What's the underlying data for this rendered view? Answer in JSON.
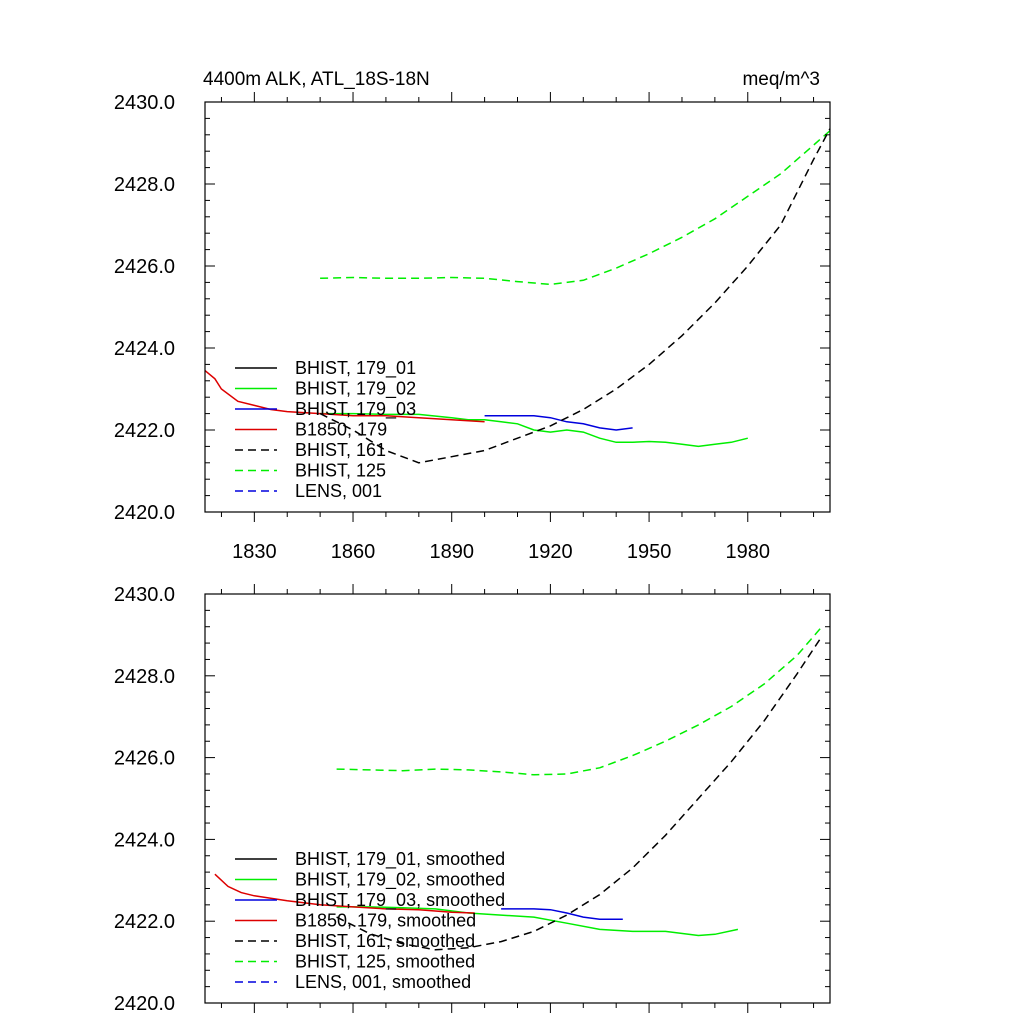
{
  "chart_data": [
    {
      "type": "line",
      "title_left": "4400m ALK, ATL_18S-18N",
      "title_right": "meq/m^3",
      "xlim": [
        1815,
        2005
      ],
      "ylim": [
        2420,
        2430
      ],
      "xticks": [
        1830,
        1860,
        1890,
        1920,
        1950,
        1980
      ],
      "xtick_labels": [
        "1830",
        "1860",
        "1890",
        "1920",
        "1950",
        "1980"
      ],
      "yticks": [
        2420,
        2422,
        2424,
        2426,
        2428,
        2430
      ],
      "ytick_labels": [
        "2420.0",
        "2422.0",
        "2424.0",
        "2426.0",
        "2428.0",
        "2430.0"
      ],
      "series": [
        {
          "name": "BHIST, 179_01",
          "color": "#000000",
          "dash": "solid",
          "x": [],
          "y": []
        },
        {
          "name": "BHIST, 179_02",
          "color": "#00ee00",
          "dash": "solid",
          "x": [
            1850,
            1860,
            1870,
            1880,
            1890,
            1895,
            1900,
            1905,
            1910,
            1915,
            1920,
            1925,
            1930,
            1935,
            1940,
            1945,
            1950,
            1955,
            1960,
            1965,
            1970,
            1975,
            1980
          ],
          "y": [
            2422.4,
            2422.4,
            2422.38,
            2422.38,
            2422.3,
            2422.25,
            2422.25,
            2422.2,
            2422.15,
            2422.0,
            2421.95,
            2422.0,
            2421.95,
            2421.8,
            2421.7,
            2421.7,
            2421.72,
            2421.7,
            2421.65,
            2421.6,
            2421.65,
            2421.7,
            2421.8
          ]
        },
        {
          "name": "BHIST, 179_03",
          "color": "#0000dd",
          "dash": "solid",
          "x": [
            1900,
            1905,
            1910,
            1915,
            1920,
            1925,
            1930,
            1935,
            1940,
            1945
          ],
          "y": [
            2422.35,
            2422.35,
            2422.35,
            2422.35,
            2422.3,
            2422.2,
            2422.15,
            2422.05,
            2422.0,
            2422.05
          ]
        },
        {
          "name": "B1850, 179",
          "color": "#dd0000",
          "dash": "solid",
          "x": [
            1815,
            1818,
            1820,
            1825,
            1830,
            1835,
            1840,
            1850,
            1860,
            1870,
            1880,
            1890,
            1900
          ],
          "y": [
            2423.45,
            2423.25,
            2423.0,
            2422.7,
            2422.6,
            2422.5,
            2422.45,
            2422.4,
            2422.35,
            2422.35,
            2422.3,
            2422.25,
            2422.2
          ]
        },
        {
          "name": "BHIST, 161",
          "color": "#000000",
          "dash": "dashed",
          "x": [
            1850,
            1860,
            1870,
            1880,
            1890,
            1900,
            1910,
            1920,
            1930,
            1940,
            1950,
            1960,
            1970,
            1980,
            1990,
            2000,
            2005
          ],
          "y": [
            2422.4,
            2422.0,
            2421.5,
            2421.2,
            2421.35,
            2421.5,
            2421.8,
            2422.1,
            2422.5,
            2423.0,
            2423.6,
            2424.3,
            2425.1,
            2426.0,
            2427.0,
            2428.6,
            2429.35
          ]
        },
        {
          "name": "BHIST, 125",
          "color": "#00ee00",
          "dash": "dashed",
          "x": [
            1850,
            1860,
            1870,
            1880,
            1890,
            1900,
            1910,
            1920,
            1930,
            1940,
            1950,
            1960,
            1970,
            1980,
            1990,
            2000,
            2005
          ],
          "y": [
            2425.7,
            2425.72,
            2425.7,
            2425.7,
            2425.72,
            2425.7,
            2425.62,
            2425.55,
            2425.65,
            2425.95,
            2426.3,
            2426.7,
            2427.15,
            2427.7,
            2428.25,
            2428.95,
            2429.3
          ]
        },
        {
          "name": "LENS, 001",
          "color": "#0000dd",
          "dash": "dashed",
          "x": [],
          "y": []
        }
      ]
    },
    {
      "type": "line",
      "xlim": [
        1815,
        2005
      ],
      "ylim": [
        2420,
        2430
      ],
      "xticks": [
        1830,
        1860,
        1890,
        1920,
        1950,
        1980
      ],
      "yticks": [
        2420,
        2422,
        2424,
        2426,
        2428,
        2430
      ],
      "ytick_labels": [
        "2420.0",
        "2422.0",
        "2424.0",
        "2426.0",
        "2428.0",
        "2430.0"
      ],
      "series": [
        {
          "name": "BHIST, 179_01, smoothed",
          "color": "#000000",
          "dash": "solid",
          "x": [],
          "y": []
        },
        {
          "name": "BHIST, 179_02, smoothed",
          "color": "#00ee00",
          "dash": "solid",
          "x": [
            1855,
            1865,
            1875,
            1885,
            1895,
            1905,
            1915,
            1925,
            1935,
            1945,
            1955,
            1965,
            1970,
            1977
          ],
          "y": [
            2422.35,
            2422.35,
            2422.33,
            2422.3,
            2422.2,
            2422.15,
            2422.1,
            2421.95,
            2421.8,
            2421.75,
            2421.75,
            2421.65,
            2421.68,
            2421.8
          ]
        },
        {
          "name": "BHIST, 179_03, smoothed",
          "color": "#0000dd",
          "dash": "solid",
          "x": [
            1905,
            1910,
            1915,
            1920,
            1925,
            1930,
            1935,
            1942
          ],
          "y": [
            2422.3,
            2422.3,
            2422.3,
            2422.28,
            2422.2,
            2422.1,
            2422.05,
            2422.05
          ]
        },
        {
          "name": "B1850, 179, smoothed",
          "color": "#dd0000",
          "dash": "solid",
          "x": [
            1818,
            1822,
            1826,
            1830,
            1840,
            1850,
            1860,
            1870,
            1880,
            1890,
            1897
          ],
          "y": [
            2423.15,
            2422.85,
            2422.7,
            2422.62,
            2422.5,
            2422.4,
            2422.35,
            2422.3,
            2422.28,
            2422.22,
            2422.2
          ]
        },
        {
          "name": "BHIST, 161, smoothed",
          "color": "#000000",
          "dash": "dashed",
          "x": [
            1855,
            1865,
            1875,
            1885,
            1895,
            1905,
            1915,
            1925,
            1935,
            1945,
            1955,
            1965,
            1975,
            1985,
            1995,
            2002
          ],
          "y": [
            2422.1,
            2421.7,
            2421.45,
            2421.3,
            2421.35,
            2421.5,
            2421.75,
            2422.15,
            2422.65,
            2423.3,
            2424.1,
            2425.0,
            2425.9,
            2426.9,
            2428.05,
            2428.9
          ]
        },
        {
          "name": "BHIST, 125, smoothed",
          "color": "#00ee00",
          "dash": "dashed",
          "x": [
            1855,
            1865,
            1875,
            1885,
            1895,
            1905,
            1915,
            1925,
            1935,
            1945,
            1955,
            1965,
            1975,
            1985,
            1995,
            2002
          ],
          "y": [
            2425.72,
            2425.7,
            2425.68,
            2425.72,
            2425.7,
            2425.65,
            2425.58,
            2425.6,
            2425.75,
            2426.05,
            2426.4,
            2426.8,
            2427.25,
            2427.8,
            2428.5,
            2429.15
          ]
        },
        {
          "name": "LENS, 001, smoothed",
          "color": "#0000dd",
          "dash": "dashed",
          "x": [],
          "y": []
        }
      ]
    }
  ]
}
